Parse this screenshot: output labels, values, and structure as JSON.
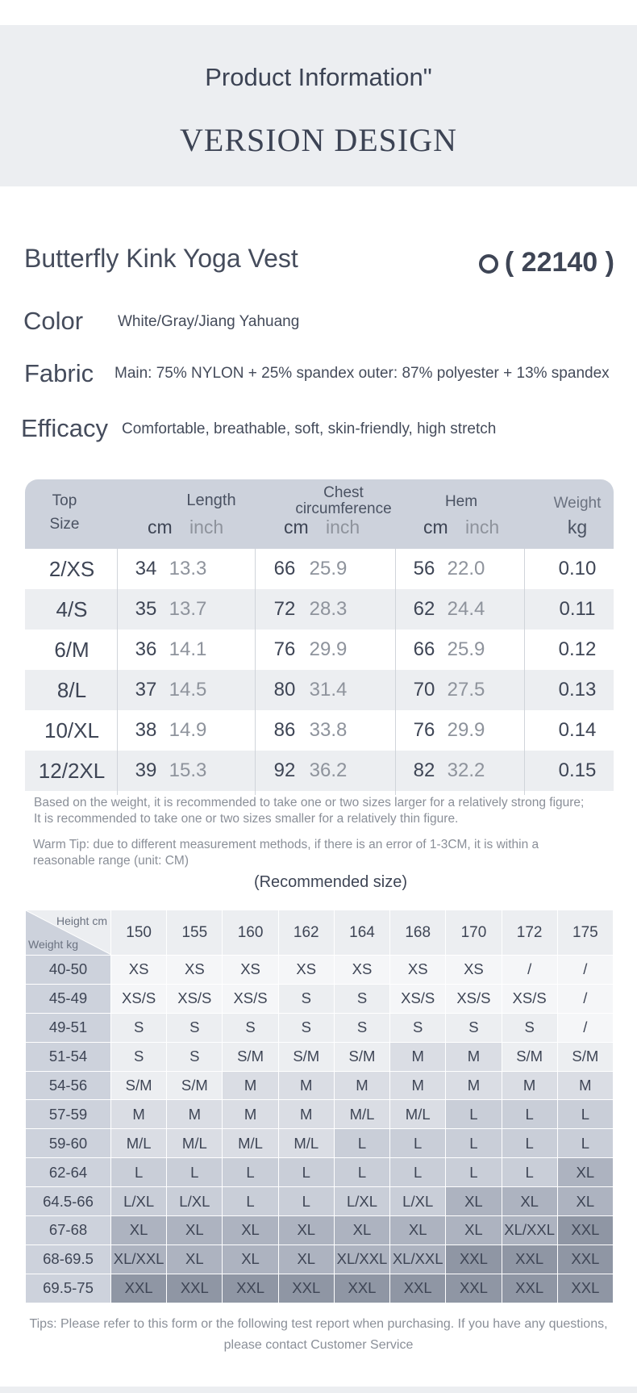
{
  "header": {
    "title": "Product Information\"",
    "subtitle": "VERSION DESIGN"
  },
  "product": {
    "name": "Butterfly Kink Yoga Vest",
    "code": "( 22140 )"
  },
  "specs": [
    {
      "label": "Color",
      "value": "White/Gray/Jiang Yahuang"
    },
    {
      "label": "Fabric",
      "value": "Main: 75% NYLON + 25% spandex outer: 87% polyester + 13% spandex"
    },
    {
      "label": "Efficacy",
      "value": "Comfortable, breathable, soft, skin-friendly, high stretch"
    }
  ],
  "size_table": {
    "headers": {
      "top": "Top",
      "size": "Size",
      "length": "Length",
      "chest": "Chest circumference",
      "hem": "Hem",
      "weight": "Weight",
      "cm": "cm",
      "inch": "inch",
      "kg": "kg"
    },
    "rows": [
      {
        "size": "2/XS",
        "len_cm": "34",
        "len_in": "13.3",
        "chest_cm": "66",
        "chest_in": "25.9",
        "hem_cm": "56",
        "hem_in": "22.0",
        "kg": "0.10"
      },
      {
        "size": "4/S",
        "len_cm": "35",
        "len_in": "13.7",
        "chest_cm": "72",
        "chest_in": "28.3",
        "hem_cm": "62",
        "hem_in": "24.4",
        "kg": "0.11"
      },
      {
        "size": "6/M",
        "len_cm": "36",
        "len_in": "14.1",
        "chest_cm": "76",
        "chest_in": "29.9",
        "hem_cm": "66",
        "hem_in": "25.9",
        "kg": "0.12"
      },
      {
        "size": "8/L",
        "len_cm": "37",
        "len_in": "14.5",
        "chest_cm": "80",
        "chest_in": "31.4",
        "hem_cm": "70",
        "hem_in": "27.5",
        "kg": "0.13"
      },
      {
        "size": "10/XL",
        "len_cm": "38",
        "len_in": "14.9",
        "chest_cm": "86",
        "chest_in": "33.8",
        "hem_cm": "76",
        "hem_in": "29.9",
        "kg": "0.14"
      },
      {
        "size": "12/2XL",
        "len_cm": "39",
        "len_in": "15.3",
        "chest_cm": "92",
        "chest_in": "36.2",
        "hem_cm": "82",
        "hem_in": "32.2",
        "kg": "0.15"
      }
    ]
  },
  "notes": {
    "line1": "Based on the weight, it is recommended to take one or two sizes larger for a relatively strong figure;",
    "line2": "It is recommended to take one or two sizes smaller for a relatively thin figure.",
    "warm1": "Warm Tip: due to different measurement methods, if there is an error of 1-3CM, it is within a",
    "warm2": "reasonable range (unit: CM)"
  },
  "recommended": {
    "title": "(Recommended size)",
    "height_label": "Height cm",
    "weight_label": "Weight kg",
    "heights": [
      "150",
      "155",
      "160",
      "162",
      "164",
      "168",
      "170",
      "172",
      "175"
    ],
    "rows": [
      {
        "w": "40-50",
        "s": [
          "XS",
          "XS",
          "XS",
          "XS",
          "XS",
          "XS",
          "XS",
          "/",
          "/"
        ]
      },
      {
        "w": "45-49",
        "s": [
          "XS/S",
          "XS/S",
          "XS/S",
          "S",
          "S",
          "XS/S",
          "XS/S",
          "XS/S",
          "/"
        ]
      },
      {
        "w": "49-51",
        "s": [
          "S",
          "S",
          "S",
          "S",
          "S",
          "S",
          "S",
          "S",
          "/"
        ]
      },
      {
        "w": "51-54",
        "s": [
          "S",
          "S",
          "S/M",
          "S/M",
          "S/M",
          "M",
          "M",
          "S/M",
          "S/M"
        ]
      },
      {
        "w": "54-56",
        "s": [
          "S/M",
          "S/M",
          "M",
          "M",
          "M",
          "M",
          "M",
          "M",
          "M"
        ]
      },
      {
        "w": "57-59",
        "s": [
          "M",
          "M",
          "M",
          "M",
          "M/L",
          "M/L",
          "L",
          "L",
          "L"
        ]
      },
      {
        "w": "59-60",
        "s": [
          "M/L",
          "M/L",
          "M/L",
          "M/L",
          "L",
          "L",
          "L",
          "L",
          "L"
        ]
      },
      {
        "w": "62-64",
        "s": [
          "L",
          "L",
          "L",
          "L",
          "L",
          "L",
          "L",
          "L",
          "XL"
        ]
      },
      {
        "w": "64.5-66",
        "s": [
          "L/XL",
          "L/XL",
          "L",
          "L",
          "L/XL",
          "L/XL",
          "XL",
          "XL",
          "XL"
        ]
      },
      {
        "w": "67-68",
        "s": [
          "XL",
          "XL",
          "XL",
          "XL",
          "XL",
          "XL",
          "XL",
          "XL/XXL",
          "XXL"
        ]
      },
      {
        "w": "68-69.5",
        "s": [
          "XL/XXL",
          "XL",
          "XL",
          "XL",
          "XL/XXL",
          "XL/XXL",
          "XXL",
          "XXL",
          "XXL"
        ]
      },
      {
        "w": "69.5-75",
        "s": [
          "XXL",
          "XXL",
          "XXL",
          "XXL",
          "XXL",
          "XXL",
          "XXL",
          "XXL",
          "XXL"
        ]
      }
    ],
    "shade_colors": {
      "XS": "#f5f6f8",
      "XS/S": "#f5f6f8",
      "S": "#eceef1",
      "S/M": "#eceef1",
      "M": "#dadde4",
      "M/L": "#dadde4",
      "L": "#c9ced8",
      "L/XL": "#c9ced8",
      "XL": "#adb3c0",
      "XL/XXL": "#adb3c0",
      "XXL": "#8f96a4",
      "/": "#f5f6f8"
    }
  },
  "tips": {
    "line1": "Tips: Please refer to this form or the following test report when purchasing. If you have any questions,",
    "line2": "please contact Customer Service"
  }
}
